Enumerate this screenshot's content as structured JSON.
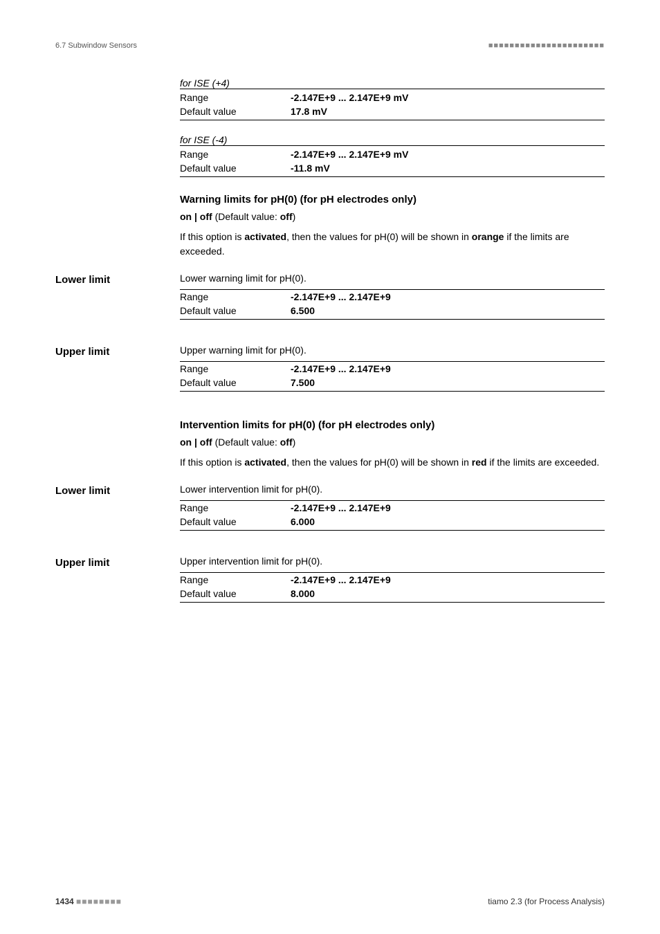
{
  "header": {
    "section_ref": "6.7 Subwindow Sensors",
    "dashes": "■■■■■■■■■■■■■■■■■■■■■■"
  },
  "block_ise_plus4": {
    "label": "for ISE (+4)",
    "range_label": "Range",
    "range_value": "-2.147E+9 ... 2.147E+9 mV",
    "default_label": "Default value",
    "default_value": "17.8 mV"
  },
  "block_ise_minus4": {
    "label": "for ISE (-4)",
    "range_label": "Range",
    "range_value": "-2.147E+9 ... 2.147E+9 mV",
    "default_label": "Default value",
    "default_value": "-11.8 mV"
  },
  "warning_section": {
    "heading": "Warning limits for pH(0) (for pH electrodes only)",
    "onoff_prefix": "on | off",
    "onoff_mid": " (Default value: ",
    "onoff_value": "off",
    "onoff_suffix": ")",
    "desc_prefix": "If this option is ",
    "desc_bold1": "activated",
    "desc_mid": ", then the values for pH(0) will be shown in ",
    "desc_bold2": "orange",
    "desc_suffix": " if the limits are exceeded."
  },
  "warning_lower": {
    "field_label": "Lower limit",
    "desc": "Lower warning limit for pH(0).",
    "range_label": "Range",
    "range_value": "-2.147E+9 ... 2.147E+9",
    "default_label": "Default value",
    "default_value": "6.500"
  },
  "warning_upper": {
    "field_label": "Upper limit",
    "desc": "Upper warning limit for pH(0).",
    "range_label": "Range",
    "range_value": "-2.147E+9 ... 2.147E+9",
    "default_label": "Default value",
    "default_value": "7.500"
  },
  "intervention_section": {
    "heading": "Intervention limits for pH(0) (for pH electrodes only)",
    "onoff_prefix": "on | off",
    "onoff_mid": " (Default value: ",
    "onoff_value": "off",
    "onoff_suffix": ")",
    "desc_prefix": "If this option is ",
    "desc_bold1": "activated",
    "desc_mid": ", then the values for pH(0) will be shown in ",
    "desc_bold2": "red",
    "desc_suffix": " if the limits are exceeded."
  },
  "intervention_lower": {
    "field_label": "Lower limit",
    "desc": "Lower intervention limit for pH(0).",
    "range_label": "Range",
    "range_value": "-2.147E+9 ... 2.147E+9",
    "default_label": "Default value",
    "default_value": "6.000"
  },
  "intervention_upper": {
    "field_label": "Upper limit",
    "desc": "Upper intervention limit for pH(0).",
    "range_label": "Range",
    "range_value": "-2.147E+9 ... 2.147E+9",
    "default_label": "Default value",
    "default_value": "8.000"
  },
  "footer": {
    "page_num": "1434",
    "dashes": "■■■■■■■■",
    "product": "tiamo 2.3 (for Process Analysis)"
  }
}
